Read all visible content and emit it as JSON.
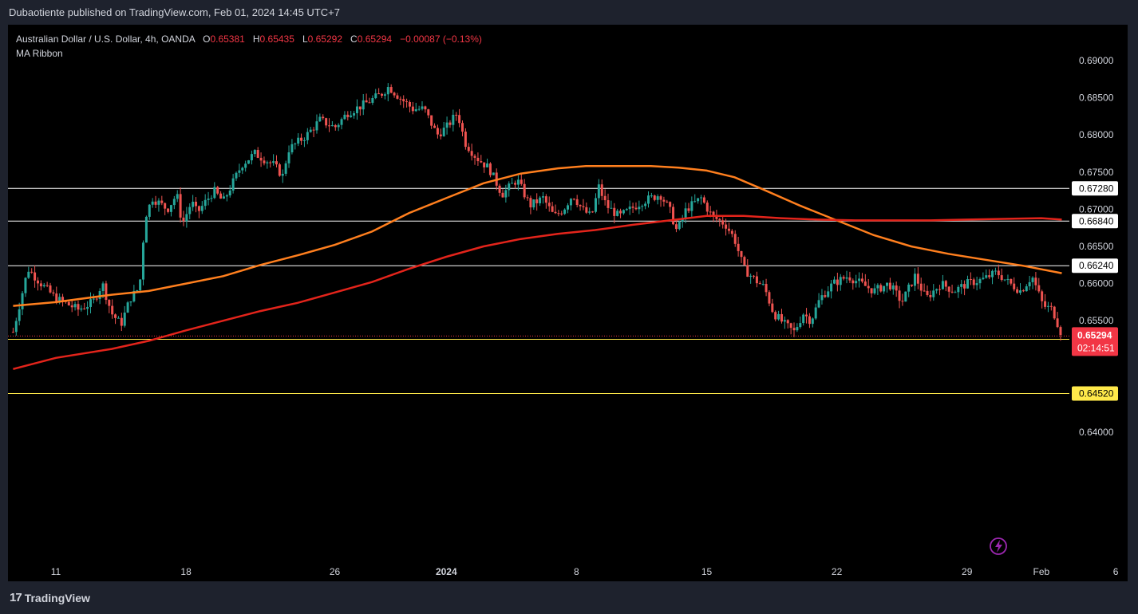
{
  "header": {
    "published_by": "Dubaotiente published on TradingView.com, Feb 01, 2024 14:45 UTC+7"
  },
  "legend": {
    "symbol": "Australian Dollar / U.S. Dollar, 4h, OANDA",
    "o_label": "O",
    "o_value": "0.65381",
    "h_label": "H",
    "h_value": "0.65435",
    "l_label": "L",
    "l_value": "0.65292",
    "c_label": "C",
    "c_value": "0.65294",
    "change": "−0.00087 (−0.13%)",
    "indicator": "MA Ribbon"
  },
  "footer": {
    "brand": "TradingView",
    "logo_icon": "tradingview-logo-icon"
  },
  "colors": {
    "background": "#000000",
    "up": "#26a69a",
    "down": "#ef5350",
    "ma_fast": "#ff7f1e",
    "ma_slow": "#e3241b",
    "level_white": "#ffffff",
    "level_yellow": "#ffe94a",
    "current_price": "#f23645"
  },
  "chart_data": {
    "type": "candlestick",
    "title": "Australian Dollar / U.S. Dollar, 4h, OANDA",
    "ylim": [
      0.6375,
      0.6925
    ],
    "x_ticks": [
      {
        "label": "11",
        "day": 0
      },
      {
        "label": "18",
        "day": 7
      },
      {
        "label": "26",
        "day": 15
      },
      {
        "label": "2024",
        "day": 21,
        "bold": true
      },
      {
        "label": "8",
        "day": 28
      },
      {
        "label": "15",
        "day": 35
      },
      {
        "label": "22",
        "day": 42
      },
      {
        "label": "29",
        "day": 49
      },
      {
        "label": "Feb",
        "day": 53
      },
      {
        "label": "6",
        "day": 57
      }
    ],
    "y_ticks": [
      "0.69000",
      "0.68500",
      "0.68000",
      "0.67500",
      "0.67000",
      "0.66500",
      "0.66000",
      "0.65500",
      "0.64000"
    ],
    "horizontal_levels": [
      {
        "value": 0.6728,
        "label": "0.67280",
        "style": "white"
      },
      {
        "value": 0.6684,
        "label": "0.66840",
        "style": "white"
      },
      {
        "value": 0.6624,
        "label": "0.66240",
        "style": "white"
      },
      {
        "value": 0.6525,
        "label": "0.65250",
        "style": "yellow"
      },
      {
        "value": 0.6452,
        "label": "0.64520",
        "style": "yellow"
      }
    ],
    "current_price": {
      "value": 0.65294,
      "label": "0.65294",
      "countdown": "02:14:51"
    },
    "anchors": [
      [
        -2.3,
        0.6535
      ],
      [
        -1.5,
        0.662
      ],
      [
        -0.8,
        0.66
      ],
      [
        0,
        0.658
      ],
      [
        1.2,
        0.6565
      ],
      [
        2,
        0.6575
      ],
      [
        2.5,
        0.66
      ],
      [
        3,
        0.656
      ],
      [
        3.5,
        0.6545
      ],
      [
        4,
        0.658
      ],
      [
        4.5,
        0.6595
      ],
      [
        4.8,
        0.669
      ],
      [
        5.2,
        0.6715
      ],
      [
        6,
        0.67
      ],
      [
        6.5,
        0.672
      ],
      [
        6.8,
        0.668
      ],
      [
        7.3,
        0.671
      ],
      [
        7.6,
        0.6695
      ],
      [
        8.5,
        0.6725
      ],
      [
        9,
        0.671
      ],
      [
        9.6,
        0.674
      ],
      [
        10,
        0.676
      ],
      [
        10.7,
        0.6775
      ],
      [
        11.7,
        0.676
      ],
      [
        12.2,
        0.6745
      ],
      [
        12.5,
        0.678
      ],
      [
        13.5,
        0.68
      ],
      [
        14.2,
        0.682
      ],
      [
        15,
        0.681
      ],
      [
        15.7,
        0.683
      ],
      [
        16.5,
        0.684
      ],
      [
        17.5,
        0.6855
      ],
      [
        17.9,
        0.6865
      ],
      [
        18.5,
        0.685
      ],
      [
        19.2,
        0.6835
      ],
      [
        19.8,
        0.6835
      ],
      [
        20.5,
        0.68
      ],
      [
        21,
        0.681
      ],
      [
        21.6,
        0.683
      ],
      [
        22,
        0.679
      ],
      [
        22.6,
        0.677
      ],
      [
        23.3,
        0.6755
      ],
      [
        24,
        0.672
      ],
      [
        24.8,
        0.674
      ],
      [
        25.5,
        0.6705
      ],
      [
        26.2,
        0.6715
      ],
      [
        26.8,
        0.669
      ],
      [
        27.3,
        0.67
      ],
      [
        27.8,
        0.672
      ],
      [
        28.3,
        0.67
      ],
      [
        28.8,
        0.669
      ],
      [
        29.2,
        0.673
      ],
      [
        29.6,
        0.6705
      ],
      [
        30.3,
        0.669
      ],
      [
        30.9,
        0.67
      ],
      [
        31.5,
        0.671
      ],
      [
        32.5,
        0.672
      ],
      [
        33,
        0.67
      ],
      [
        33.4,
        0.667
      ],
      [
        33.9,
        0.67
      ],
      [
        34.7,
        0.6715
      ],
      [
        35.3,
        0.669
      ],
      [
        36,
        0.668
      ],
      [
        36.5,
        0.666
      ],
      [
        37,
        0.662
      ],
      [
        37.6,
        0.6605
      ],
      [
        38.1,
        0.6595
      ],
      [
        38.6,
        0.656
      ],
      [
        39.2,
        0.6545
      ],
      [
        39.7,
        0.6535
      ],
      [
        40.2,
        0.656
      ],
      [
        40.6,
        0.655
      ],
      [
        41.1,
        0.658
      ],
      [
        41.8,
        0.66
      ],
      [
        42.6,
        0.661
      ],
      [
        43.3,
        0.66
      ],
      [
        44,
        0.659
      ],
      [
        44.8,
        0.66
      ],
      [
        45.5,
        0.6575
      ],
      [
        46.2,
        0.661
      ],
      [
        46.8,
        0.658
      ],
      [
        47.6,
        0.66
      ],
      [
        48.3,
        0.659
      ],
      [
        49,
        0.66
      ],
      [
        49.8,
        0.6605
      ],
      [
        50.6,
        0.6615
      ],
      [
        51.3,
        0.66
      ],
      [
        51.9,
        0.659
      ],
      [
        52.5,
        0.661
      ],
      [
        53.1,
        0.657
      ],
      [
        53.6,
        0.6565
      ],
      [
        54.1,
        0.6531
      ]
    ],
    "series": [
      {
        "name": "MA fast",
        "color": "#ff7f1e",
        "points": [
          [
            -2.3,
            0.657
          ],
          [
            0,
            0.6575
          ],
          [
            3,
            0.6585
          ],
          [
            5,
            0.659
          ],
          [
            7,
            0.66
          ],
          [
            9,
            0.661
          ],
          [
            11,
            0.6625
          ],
          [
            13,
            0.6638
          ],
          [
            15,
            0.6652
          ],
          [
            17,
            0.667
          ],
          [
            19,
            0.6695
          ],
          [
            21,
            0.6715
          ],
          [
            23,
            0.6735
          ],
          [
            25,
            0.6748
          ],
          [
            27,
            0.6755
          ],
          [
            28.5,
            0.6758
          ],
          [
            30,
            0.6758
          ],
          [
            32,
            0.6758
          ],
          [
            33.5,
            0.6756
          ],
          [
            35,
            0.6752
          ],
          [
            36.5,
            0.6743
          ],
          [
            38,
            0.6727
          ],
          [
            40,
            0.6705
          ],
          [
            42,
            0.6685
          ],
          [
            44,
            0.6665
          ],
          [
            46,
            0.665
          ],
          [
            48,
            0.664
          ],
          [
            50,
            0.6632
          ],
          [
            52,
            0.6624
          ],
          [
            54.1,
            0.6614
          ]
        ]
      },
      {
        "name": "MA slow",
        "color": "#e3241b",
        "points": [
          [
            -2.3,
            0.6485
          ],
          [
            0,
            0.65
          ],
          [
            3,
            0.6512
          ],
          [
            5,
            0.6523
          ],
          [
            7,
            0.6537
          ],
          [
            9,
            0.655
          ],
          [
            11,
            0.6563
          ],
          [
            13,
            0.6574
          ],
          [
            15,
            0.6588
          ],
          [
            17,
            0.6602
          ],
          [
            19,
            0.662
          ],
          [
            21,
            0.6636
          ],
          [
            23,
            0.665
          ],
          [
            25,
            0.666
          ],
          [
            27,
            0.6667
          ],
          [
            29,
            0.6672
          ],
          [
            31,
            0.6679
          ],
          [
            33,
            0.6685
          ],
          [
            35,
            0.6691
          ],
          [
            37,
            0.6691
          ],
          [
            39,
            0.6688
          ],
          [
            41,
            0.6686
          ],
          [
            43,
            0.6685
          ],
          [
            45,
            0.6685
          ],
          [
            47,
            0.6685
          ],
          [
            49,
            0.6686
          ],
          [
            51,
            0.6687
          ],
          [
            53,
            0.6688
          ],
          [
            54.1,
            0.6686
          ]
        ]
      }
    ]
  }
}
